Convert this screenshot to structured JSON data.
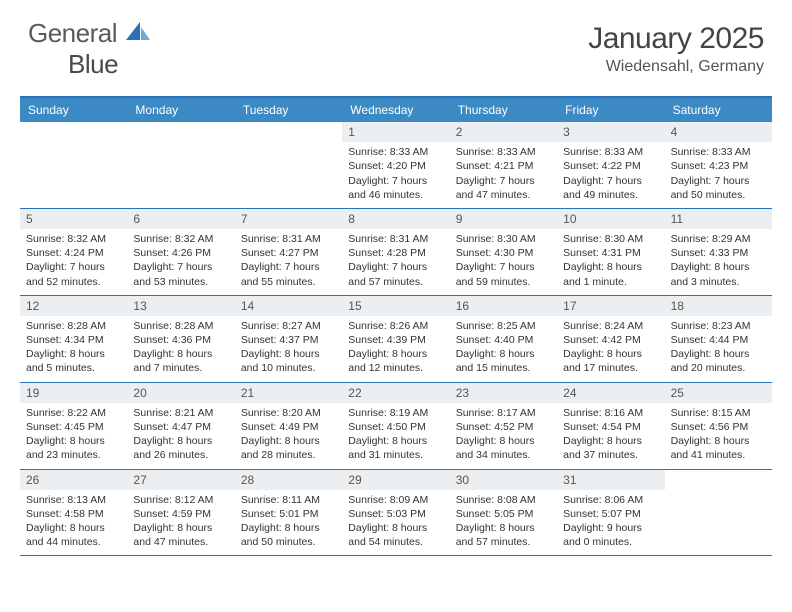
{
  "logo": {
    "text1": "General",
    "text2": "Blue"
  },
  "title": "January 2025",
  "location": "Wiedensahl, Germany",
  "colors": {
    "header_bar": "#3b8ac4",
    "rule": "#2a71b8",
    "daynum_bg": "#eceff1",
    "text": "#333333",
    "title_text": "#444444"
  },
  "day_names": [
    "Sunday",
    "Monday",
    "Tuesday",
    "Wednesday",
    "Thursday",
    "Friday",
    "Saturday"
  ],
  "weeks": [
    [
      null,
      null,
      null,
      {
        "n": "1",
        "sr": "8:33 AM",
        "ss": "4:20 PM",
        "dl": "7 hours and 46 minutes."
      },
      {
        "n": "2",
        "sr": "8:33 AM",
        "ss": "4:21 PM",
        "dl": "7 hours and 47 minutes."
      },
      {
        "n": "3",
        "sr": "8:33 AM",
        "ss": "4:22 PM",
        "dl": "7 hours and 49 minutes."
      },
      {
        "n": "4",
        "sr": "8:33 AM",
        "ss": "4:23 PM",
        "dl": "7 hours and 50 minutes."
      }
    ],
    [
      {
        "n": "5",
        "sr": "8:32 AM",
        "ss": "4:24 PM",
        "dl": "7 hours and 52 minutes."
      },
      {
        "n": "6",
        "sr": "8:32 AM",
        "ss": "4:26 PM",
        "dl": "7 hours and 53 minutes."
      },
      {
        "n": "7",
        "sr": "8:31 AM",
        "ss": "4:27 PM",
        "dl": "7 hours and 55 minutes."
      },
      {
        "n": "8",
        "sr": "8:31 AM",
        "ss": "4:28 PM",
        "dl": "7 hours and 57 minutes."
      },
      {
        "n": "9",
        "sr": "8:30 AM",
        "ss": "4:30 PM",
        "dl": "7 hours and 59 minutes."
      },
      {
        "n": "10",
        "sr": "8:30 AM",
        "ss": "4:31 PM",
        "dl": "8 hours and 1 minute."
      },
      {
        "n": "11",
        "sr": "8:29 AM",
        "ss": "4:33 PM",
        "dl": "8 hours and 3 minutes."
      }
    ],
    [
      {
        "n": "12",
        "sr": "8:28 AM",
        "ss": "4:34 PM",
        "dl": "8 hours and 5 minutes."
      },
      {
        "n": "13",
        "sr": "8:28 AM",
        "ss": "4:36 PM",
        "dl": "8 hours and 7 minutes."
      },
      {
        "n": "14",
        "sr": "8:27 AM",
        "ss": "4:37 PM",
        "dl": "8 hours and 10 minutes."
      },
      {
        "n": "15",
        "sr": "8:26 AM",
        "ss": "4:39 PM",
        "dl": "8 hours and 12 minutes."
      },
      {
        "n": "16",
        "sr": "8:25 AM",
        "ss": "4:40 PM",
        "dl": "8 hours and 15 minutes."
      },
      {
        "n": "17",
        "sr": "8:24 AM",
        "ss": "4:42 PM",
        "dl": "8 hours and 17 minutes."
      },
      {
        "n": "18",
        "sr": "8:23 AM",
        "ss": "4:44 PM",
        "dl": "8 hours and 20 minutes."
      }
    ],
    [
      {
        "n": "19",
        "sr": "8:22 AM",
        "ss": "4:45 PM",
        "dl": "8 hours and 23 minutes."
      },
      {
        "n": "20",
        "sr": "8:21 AM",
        "ss": "4:47 PM",
        "dl": "8 hours and 26 minutes."
      },
      {
        "n": "21",
        "sr": "8:20 AM",
        "ss": "4:49 PM",
        "dl": "8 hours and 28 minutes."
      },
      {
        "n": "22",
        "sr": "8:19 AM",
        "ss": "4:50 PM",
        "dl": "8 hours and 31 minutes."
      },
      {
        "n": "23",
        "sr": "8:17 AM",
        "ss": "4:52 PM",
        "dl": "8 hours and 34 minutes."
      },
      {
        "n": "24",
        "sr": "8:16 AM",
        "ss": "4:54 PM",
        "dl": "8 hours and 37 minutes."
      },
      {
        "n": "25",
        "sr": "8:15 AM",
        "ss": "4:56 PM",
        "dl": "8 hours and 41 minutes."
      }
    ],
    [
      {
        "n": "26",
        "sr": "8:13 AM",
        "ss": "4:58 PM",
        "dl": "8 hours and 44 minutes."
      },
      {
        "n": "27",
        "sr": "8:12 AM",
        "ss": "4:59 PM",
        "dl": "8 hours and 47 minutes."
      },
      {
        "n": "28",
        "sr": "8:11 AM",
        "ss": "5:01 PM",
        "dl": "8 hours and 50 minutes."
      },
      {
        "n": "29",
        "sr": "8:09 AM",
        "ss": "5:03 PM",
        "dl": "8 hours and 54 minutes."
      },
      {
        "n": "30",
        "sr": "8:08 AM",
        "ss": "5:05 PM",
        "dl": "8 hours and 57 minutes."
      },
      {
        "n": "31",
        "sr": "8:06 AM",
        "ss": "5:07 PM",
        "dl": "9 hours and 0 minutes."
      },
      null
    ]
  ],
  "labels": {
    "sunrise": "Sunrise: ",
    "sunset": "Sunset: ",
    "daylight": "Daylight: "
  }
}
